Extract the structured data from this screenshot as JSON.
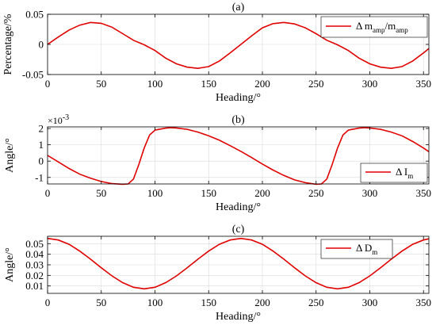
{
  "chart_data": [
    {
      "type": "line",
      "title": "(a)",
      "xlabel": "Heading/°",
      "ylabel": "Percentage/%",
      "xlim": [
        0,
        355
      ],
      "ylim": [
        -0.05,
        0.05
      ],
      "xticks": [
        0,
        50,
        100,
        150,
        200,
        250,
        300,
        350
      ],
      "yticks": [
        -0.05,
        0,
        0.05
      ],
      "ytick_labels": [
        "-0.05",
        "0",
        "0.05"
      ],
      "grid": true,
      "legend_position": "top-right",
      "legend": {
        "main": "Δ m",
        "sub": "amp",
        "tail": "/m",
        "tail_sub": "amp"
      },
      "series": [
        {
          "color": "#e00000",
          "x": [
            0,
            10,
            20,
            30,
            40,
            50,
            60,
            70,
            80,
            90,
            100,
            110,
            120,
            130,
            140,
            150,
            160,
            170,
            180,
            190,
            200,
            210,
            220,
            230,
            240,
            250,
            260,
            270,
            280,
            290,
            300,
            310,
            320,
            330,
            340,
            350,
            355
          ],
          "y": [
            0.0,
            0.0123,
            0.0238,
            0.032,
            0.0365,
            0.035,
            0.0285,
            0.0178,
            0.0068,
            -0.0006,
            -0.0101,
            -0.0228,
            -0.0323,
            -0.0378,
            -0.0398,
            -0.0368,
            -0.0275,
            -0.0142,
            0.0,
            0.0142,
            0.0275,
            0.0345,
            0.0365,
            0.034,
            0.0275,
            0.0178,
            0.0068,
            -0.0006,
            -0.0101,
            -0.0228,
            -0.0323,
            -0.0378,
            -0.0398,
            -0.0368,
            -0.0275,
            -0.0142,
            -0.007
          ]
        }
      ]
    },
    {
      "type": "line",
      "title": "(b)",
      "xlabel": "Heading/°",
      "ylabel": "Angle/°",
      "exponent_base": "×10",
      "exponent_power": "-3",
      "xlim": [
        0,
        355
      ],
      "ylim": [
        -1.4,
        2.1
      ],
      "xticks": [
        0,
        50,
        100,
        150,
        200,
        250,
        300,
        350
      ],
      "yticks": [
        -1,
        0,
        1,
        2
      ],
      "ytick_labels": [
        "-1",
        "0",
        "1",
        "2"
      ],
      "grid": true,
      "legend_position": "bottom-right",
      "legend": {
        "main": "Δ I",
        "sub": "m"
      },
      "series": [
        {
          "color": "#e00000",
          "x": [
            0,
            10,
            20,
            30,
            40,
            50,
            60,
            70,
            75,
            80,
            85,
            90,
            95,
            100,
            110,
            115,
            120,
            130,
            140,
            150,
            160,
            170,
            180,
            190,
            200,
            210,
            220,
            230,
            240,
            250,
            255,
            260,
            265,
            270,
            275,
            280,
            290,
            295,
            300,
            310,
            320,
            330,
            340,
            350,
            355
          ],
          "y": [
            0.35,
            -0.05,
            -0.45,
            -0.8,
            -1.05,
            -1.25,
            -1.38,
            -1.42,
            -1.4,
            -1.1,
            -0.2,
            0.8,
            1.6,
            1.9,
            2.02,
            2.05,
            2.03,
            1.95,
            1.78,
            1.55,
            1.28,
            0.95,
            0.6,
            0.22,
            -0.18,
            -0.55,
            -0.88,
            -1.15,
            -1.32,
            -1.42,
            -1.4,
            -1.1,
            -0.2,
            0.8,
            1.6,
            1.9,
            2.02,
            2.05,
            2.03,
            1.95,
            1.78,
            1.55,
            1.2,
            0.8,
            0.58
          ]
        }
      ]
    },
    {
      "type": "line",
      "title": "(c)",
      "xlabel": "Heading/°",
      "ylabel": "Angle/°",
      "xlim": [
        0,
        355
      ],
      "ylim": [
        0.003,
        0.057
      ],
      "xticks": [
        0,
        50,
        100,
        150,
        200,
        250,
        300,
        350
      ],
      "yticks": [
        0.01,
        0.02,
        0.03,
        0.04,
        0.05
      ],
      "ytick_labels": [
        "0.01",
        "0.02",
        "0.03",
        "0.04",
        "0.05"
      ],
      "grid": true,
      "legend_position": "top-right",
      "legend": {
        "main": "Δ D",
        "sub": "m"
      },
      "series": [
        {
          "color": "#e00000",
          "x": [
            0,
            10,
            20,
            30,
            40,
            50,
            60,
            70,
            80,
            90,
            100,
            110,
            120,
            130,
            140,
            150,
            160,
            170,
            180,
            190,
            200,
            210,
            220,
            230,
            240,
            250,
            260,
            270,
            280,
            290,
            300,
            310,
            320,
            330,
            340,
            350,
            355
          ],
          "y": [
            0.055,
            0.0535,
            0.0494,
            0.043,
            0.0353,
            0.0272,
            0.0195,
            0.0131,
            0.0088,
            0.0073,
            0.0088,
            0.0131,
            0.0195,
            0.0272,
            0.0353,
            0.043,
            0.0494,
            0.0535,
            0.055,
            0.0535,
            0.0494,
            0.043,
            0.0353,
            0.0272,
            0.0195,
            0.0131,
            0.0088,
            0.0073,
            0.0088,
            0.0131,
            0.0195,
            0.0272,
            0.0353,
            0.043,
            0.0494,
            0.0535,
            0.0546
          ]
        }
      ]
    }
  ]
}
